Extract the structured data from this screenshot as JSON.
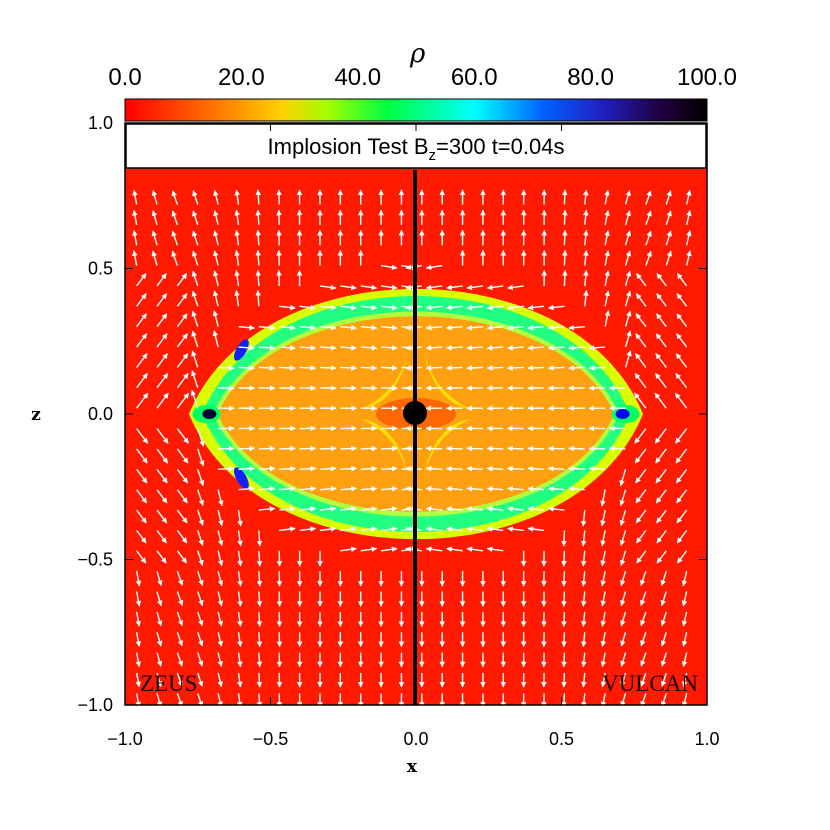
{
  "chart_data": {
    "type": "heatmap",
    "title": {
      "prefix": "Implosion Test B",
      "sub": "z",
      "suffix": "=300 t=0.04s"
    },
    "colorbar": {
      "label": "ρ",
      "range": [
        0,
        100
      ],
      "ticks": [
        "0.0",
        "20.0",
        "40.0",
        "60.0",
        "80.0",
        "100.0"
      ],
      "colormap": [
        "#ff0000",
        "#ff8800",
        "#ffff00",
        "#00ff00",
        "#00ffff",
        "#0000ff",
        "#000050",
        "#000000"
      ]
    },
    "xlabel": "x",
    "ylabel": "z",
    "xlim": [
      -1.0,
      1.0
    ],
    "ylim": [
      -1.0,
      1.0
    ],
    "xticks": [
      "−1.0",
      "−0.5",
      "0.0",
      "0.5",
      "1.0"
    ],
    "yticks": [
      "−1.0",
      "−0.5",
      "0.0",
      "0.5",
      "1.0"
    ],
    "left_panel_label": "ZEUS",
    "right_panel_label": "VULCAN",
    "field": {
      "background_density": 5,
      "interior_density": 18,
      "shell_density": 50,
      "shell_outer_halfwidth_x": 0.75,
      "shell_outer_halfheight_z": 0.52,
      "central_core_density": 100,
      "tip_density": 85
    },
    "vectors": "magnetic field arrows (white)"
  }
}
